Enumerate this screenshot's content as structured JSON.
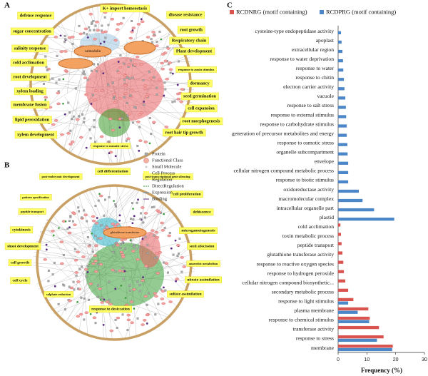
{
  "panels": {
    "a": {
      "letter": "A",
      "labels": [
        "K+ import homeostasis",
        "defense response",
        "disease resistance",
        "sugar concentration",
        "root growth",
        "Respiratory chain",
        "salinity response",
        "Plant development",
        "cold acclimation",
        "response to auxin stimulus",
        "root development",
        "dormancy",
        "xylem loading",
        "seed germination",
        "membrane fusion",
        "cell expansion",
        "lipid peroxidation",
        "root morphogenesis",
        "xylem development",
        "root hair tip growth",
        "response to osmotic stress"
      ],
      "inner": [
        "calmodulin"
      ]
    },
    "b": {
      "letter": "B",
      "labels": [
        "cell differentiation",
        "post-embryonic development",
        "post-transcriptional gene silencing",
        "pattern specification",
        "cell proliferation",
        "peptide transport",
        "dehiscence",
        "cytokinesis",
        "microgametogenesis",
        "shoot development",
        "seed abscission",
        "cell growth",
        "anaerobic metabolism",
        "cell cycle",
        "nitrate assimilation",
        "sulphate reduction",
        "sulfate assimilation",
        "response to desiccation"
      ],
      "inner": [
        "glutathione transferase"
      ]
    },
    "legend": [
      "Protein",
      "Functional Class",
      "Small Molecule",
      "Cell Process",
      "Regulation",
      "DirectRegulation",
      "Expression",
      "Binding"
    ]
  },
  "chart_data": {
    "type": "bar",
    "horizontal": true,
    "panel_label": "C",
    "xlabel": "Frequency (%)",
    "categories": [
      "cysteine-type endopeptidase activity",
      "apoplast",
      "extracellular region",
      "response to water deprivation",
      "response to water",
      "response to chitin",
      "electron carrier activity",
      "vacuole",
      "response to salt stress",
      "response to external stimulus",
      "response to carbohydrate stimulus",
      "generation of precursor metabolites and energy",
      "response to osmotic stress",
      "organelle subcompartment",
      "envelope",
      "cellular nitrogen compound metabolic process",
      "response to biotic stimulus",
      "oxidoreductase activity",
      "macromolecular complex",
      "intracellular organelle part",
      "plastid",
      "cold acclimation",
      "toxin metabolic process",
      "peptide transport",
      "glutathione transferase activity",
      "response to reactive oxygen species",
      "response to hydrogen peroxide",
      "cellular nitrogen compound biosynthetic...",
      "secondary metabolic process",
      "response to light stimulus",
      "plasma membrane",
      "response to chemical stimulus",
      "transferase activity",
      "response to stress",
      "membrane"
    ],
    "series": [
      {
        "name": "RCDNRG (motif containing)",
        "color": "#d9534f",
        "values": [
          null,
          null,
          null,
          null,
          null,
          null,
          null,
          null,
          null,
          null,
          null,
          null,
          null,
          null,
          null,
          null,
          null,
          null,
          null,
          null,
          null,
          0.8,
          1,
          1.2,
          1.5,
          1.8,
          2,
          2.5,
          3.5,
          5.3,
          10.5,
          11,
          14.2,
          15.8,
          19
        ]
      },
      {
        "name": "RCDPRG (motif containing)",
        "color": "#4a86c8",
        "values": [
          1,
          1.2,
          1.5,
          1.7,
          1.8,
          2,
          2.2,
          2.5,
          2.7,
          2.8,
          3,
          3,
          3.2,
          3.3,
          3.5,
          3.5,
          3.5,
          7.2,
          8.5,
          12.5,
          19.5,
          null,
          null,
          null,
          null,
          null,
          null,
          null,
          null,
          3.5,
          6.8,
          10.8,
          null,
          13.5,
          18.8
        ]
      }
    ],
    "xlim": [
      0,
      30
    ],
    "xticks": [
      0,
      10,
      20,
      30
    ]
  }
}
